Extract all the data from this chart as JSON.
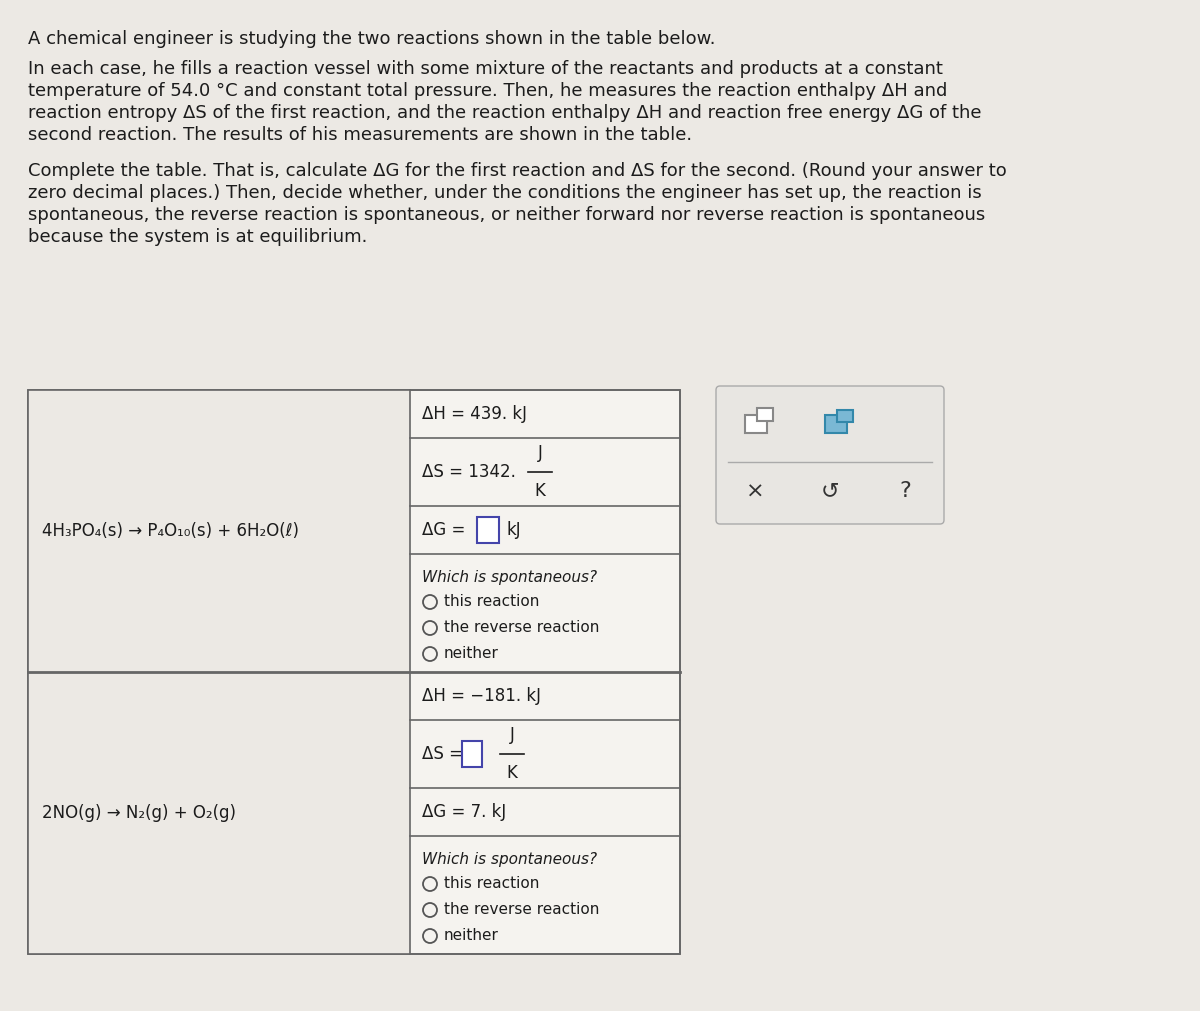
{
  "background_color": "#ece9e4",
  "title_text": "A chemical engineer is studying the two reactions shown in the table below.",
  "paragraph1_lines": [
    "In each case, he fills a reaction vessel with some mixture of the reactants and products at a constant",
    "temperature of 54.0 °C and constant total pressure. Then, he measures the reaction enthalpy ΔH and",
    "reaction entropy ΔS of the first reaction, and the reaction enthalpy ΔH and reaction free energy ΔG of the",
    "second reaction. The results of his measurements are shown in the table."
  ],
  "paragraph2_lines": [
    "Complete the table. That is, calculate ΔG for the first reaction and ΔS for the second. (Round your answer to",
    "zero decimal places.) Then, decide whether, under the conditions the engineer has set up, the reaction is",
    "spontaneous, the reverse reaction is spontaneous, or neither forward nor reverse reaction is spontaneous",
    "because the system is at equilibrium."
  ],
  "reaction1_equation": "4H₃PO₄(s) → P₄O₁₀(s) + 6H₂O(ℓ)",
  "reaction2_equation": "2NO(g) → N₂(g) + O₂(g)",
  "rxn1_dH": "ΔH = 439. kJ",
  "rxn1_dS_pre": "ΔS = 1342.",
  "rxn1_dG_pre": "ΔG =",
  "rxn1_dG_post": "kJ",
  "rxn1_spontaneous_label": "Which is spontaneous?",
  "rxn1_radio_options": [
    "this reaction",
    "the reverse reaction",
    "neither"
  ],
  "rxn2_dH": "ΔH = −181. kJ",
  "rxn2_dS_pre": "ΔS =",
  "rxn2_dG": "ΔG = 7. kJ",
  "rxn2_spontaneous_label": "Which is spontaneous?",
  "rxn2_radio_options": [
    "this reaction",
    "the reverse reaction",
    "neither"
  ],
  "text_color": "#1c1c1c",
  "table_border_color": "#666666",
  "table_bg_left": "#ece9e4",
  "table_bg_right": "#f5f3ef",
  "font_size": 13,
  "font_size_table": 12,
  "font_size_small": 11
}
